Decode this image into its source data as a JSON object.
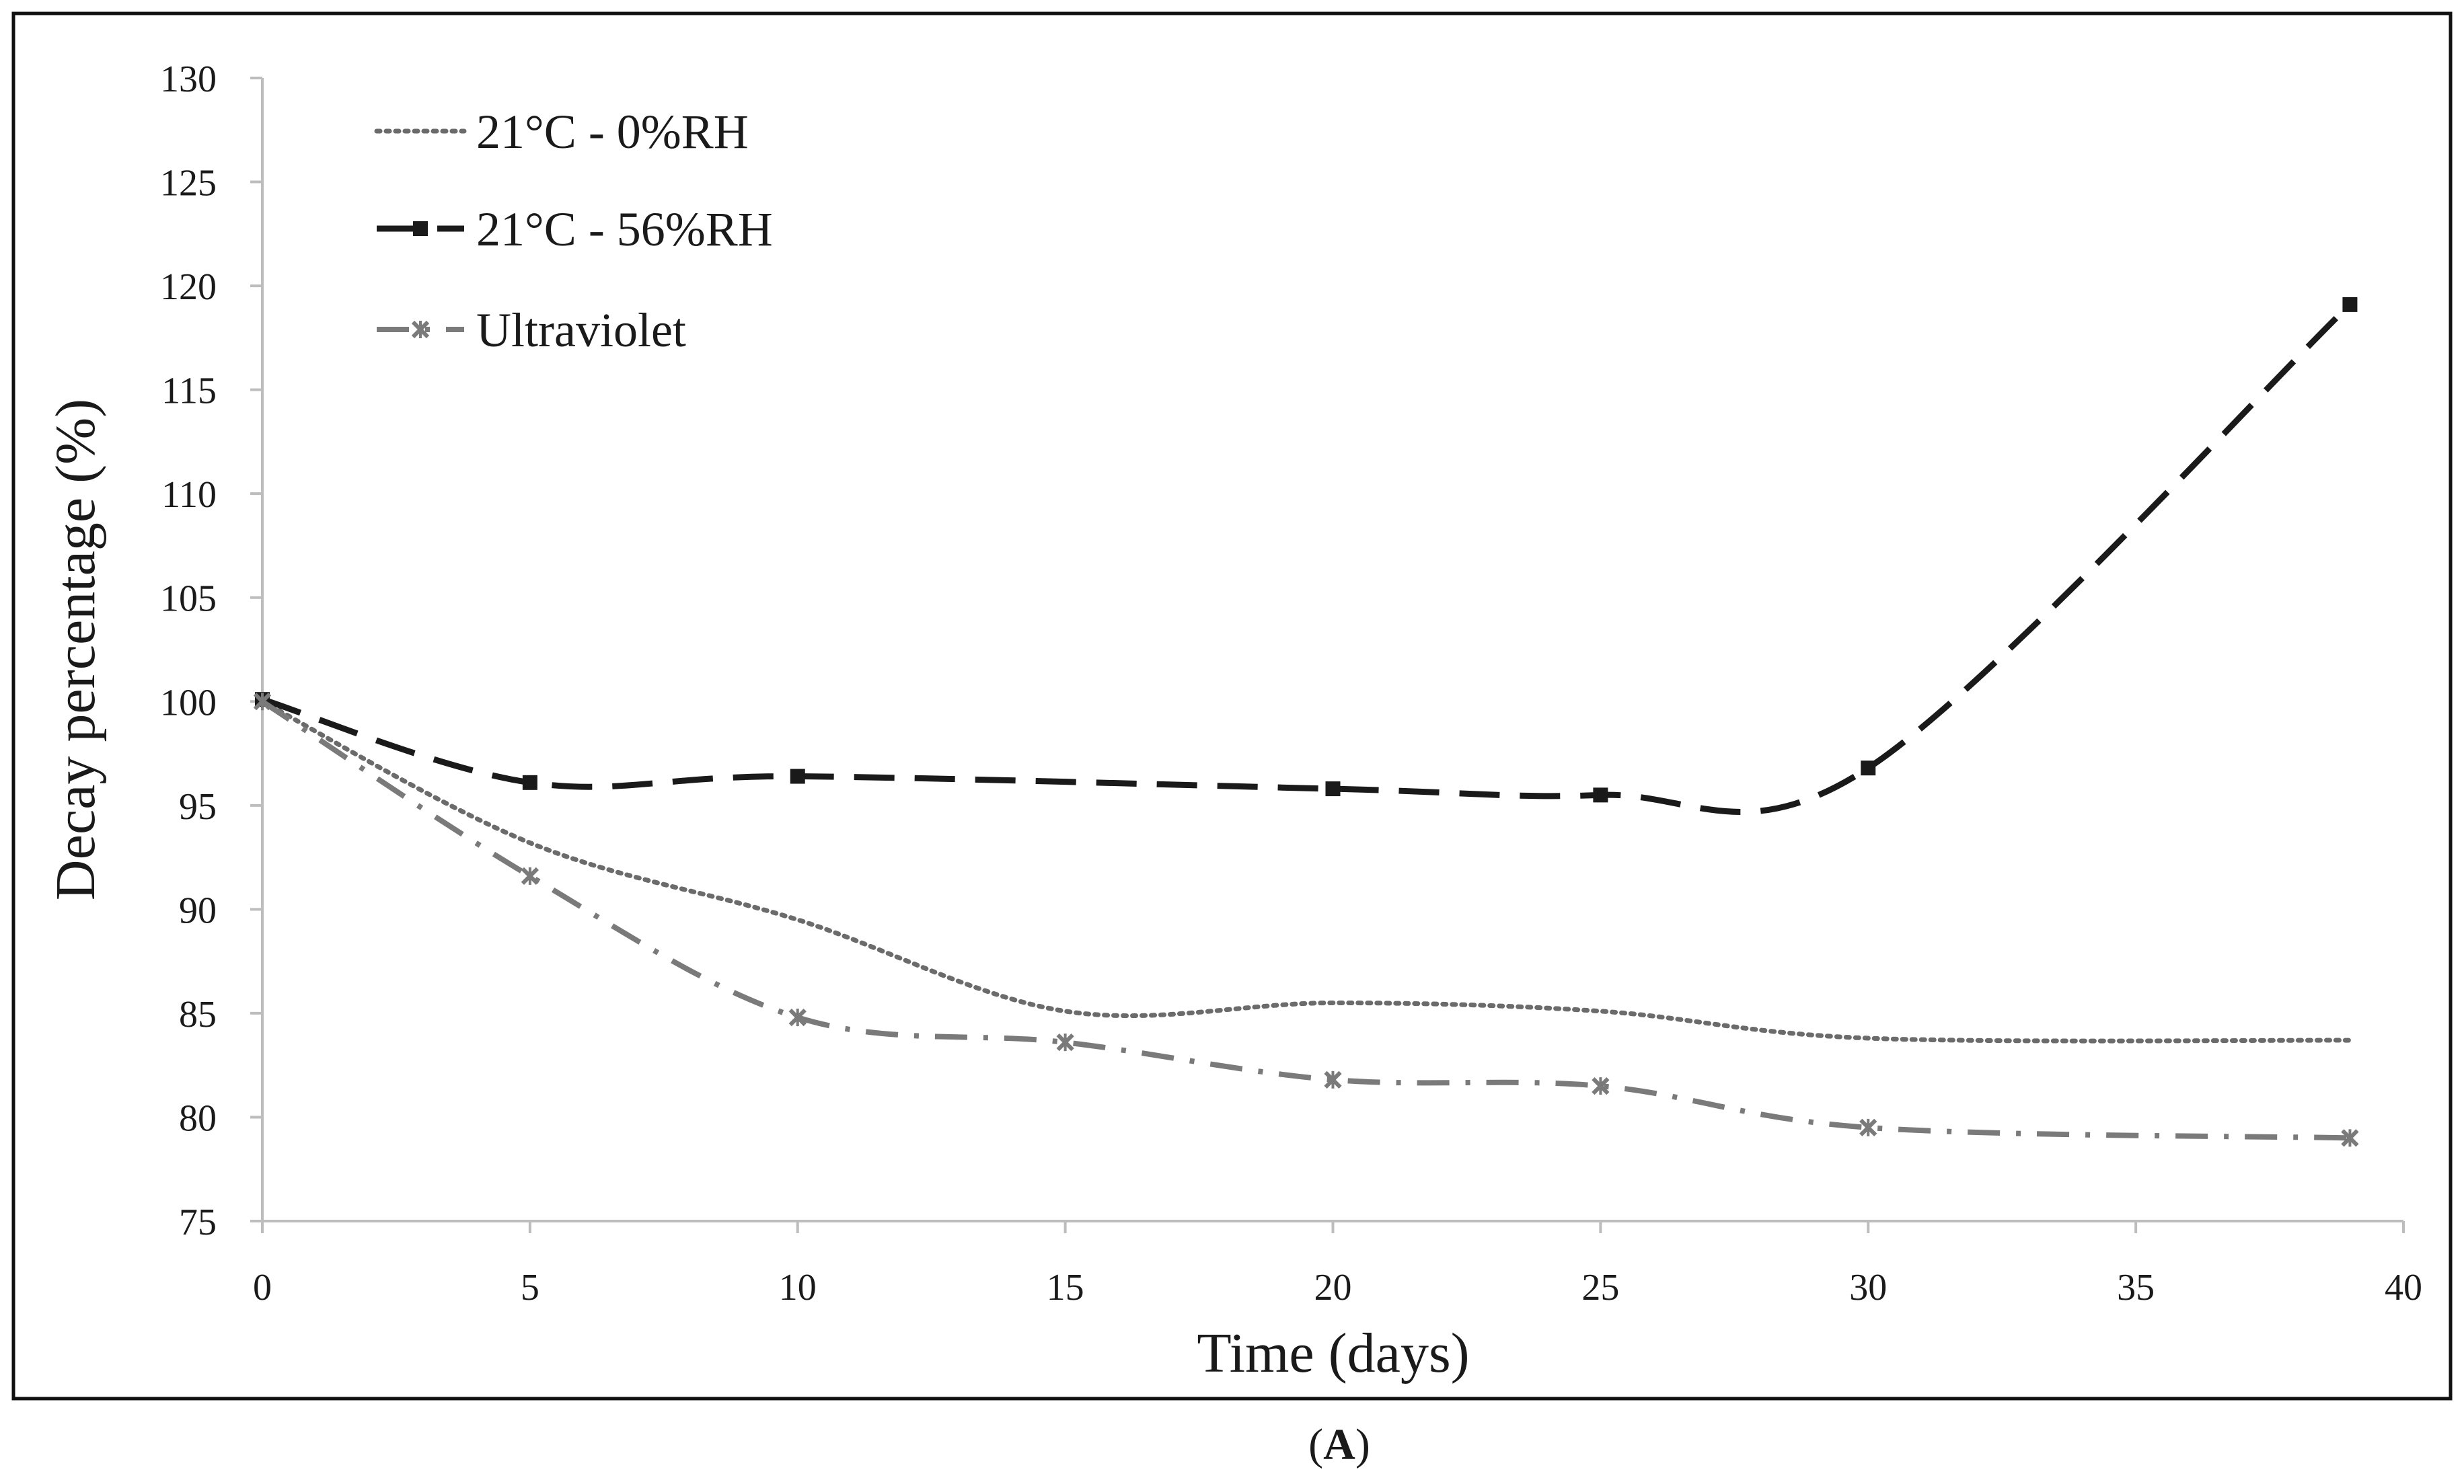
{
  "chart_data": {
    "type": "line",
    "title": "",
    "xlabel": "Time (days)",
    "ylabel": "Decay percentage (%)",
    "xlim": [
      0,
      40
    ],
    "ylim": [
      75,
      130
    ],
    "xticks": [
      0,
      5,
      10,
      15,
      20,
      25,
      30,
      35,
      40
    ],
    "yticks": [
      75,
      80,
      85,
      90,
      95,
      100,
      105,
      110,
      115,
      120,
      125,
      130
    ],
    "grid": false,
    "legend_position": "top-left",
    "series": [
      {
        "name": "21°C - 0%RH",
        "color": "#6b6b6b",
        "style": "dotted",
        "marker": "none",
        "x": [
          0,
          5,
          10,
          15,
          20,
          25,
          30,
          39
        ],
        "values": [
          100,
          93.2,
          89.5,
          85.1,
          85.5,
          85.1,
          83.8,
          83.7
        ]
      },
      {
        "name": "21°C - 56%RH",
        "color": "#1a1a1a",
        "style": "dashed",
        "marker": "square",
        "x": [
          0,
          5,
          10,
          15,
          20,
          25,
          30,
          39
        ],
        "values": [
          100.1,
          96.1,
          96.4,
          null,
          95.8,
          95.5,
          96.8,
          119.1
        ]
      },
      {
        "name": "Ultraviolet",
        "color": "#7a7a7a",
        "style": "dash-dot",
        "marker": "x",
        "x": [
          0,
          5,
          10,
          15,
          20,
          25,
          30,
          39
        ],
        "values": [
          100,
          91.6,
          84.8,
          83.6,
          81.8,
          81.5,
          79.5,
          79
        ]
      }
    ]
  },
  "caption": {
    "open": "(",
    "letter": "A",
    "close": ")"
  }
}
